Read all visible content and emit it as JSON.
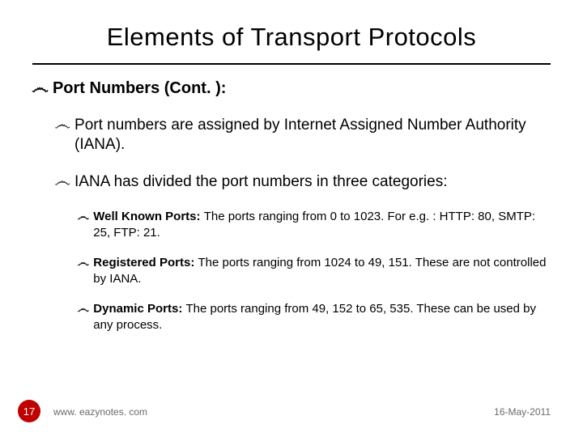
{
  "title": "Elements of Transport Protocols",
  "l1": {
    "bullet": "෴",
    "text": "Port Numbers (Cont. ):"
  },
  "l2": {
    "items": [
      {
        "bullet": "෴",
        "text": "Port numbers are assigned by Internet Assigned Number Authority (IANA)."
      },
      {
        "bullet": "෴",
        "text": "IANA has divided the port numbers in three categories:"
      }
    ]
  },
  "l3": {
    "items": [
      {
        "bullet": "෴",
        "bold": "Well Known Ports: ",
        "rest": "The ports ranging from 0 to 1023. For e.g. : HTTP: 80, SMTP: 25, FTP: 21."
      },
      {
        "bullet": "෴",
        "bold": "Registered Ports: ",
        "rest": "The ports ranging from 1024 to 49, 151. These are not controlled by IANA."
      },
      {
        "bullet": "෴",
        "bold": "Dynamic Ports: ",
        "rest": "The ports ranging from 49, 152 to 65, 535. These can be used by any process."
      }
    ]
  },
  "footer": {
    "page": "17",
    "url": "www. eazynotes. com",
    "date": "16-May-2011"
  },
  "colors": {
    "accent": "#c00000",
    "text": "#000000",
    "muted": "#6a6a6a",
    "background": "#ffffff"
  }
}
